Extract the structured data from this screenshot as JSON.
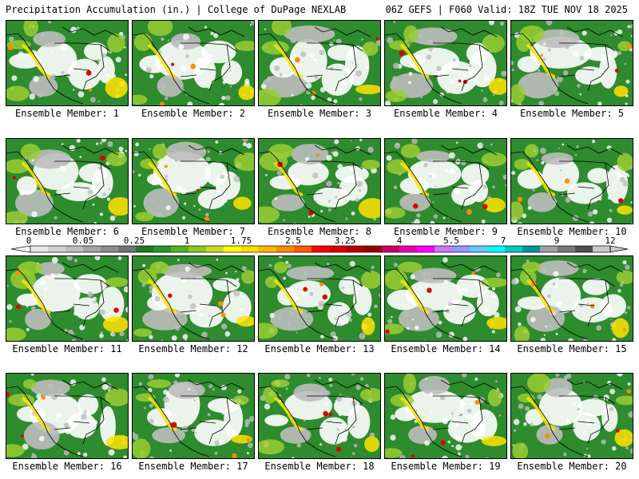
{
  "header": {
    "left": "Precipitation Accumulation (in.) | College of DuPage NEXLAB",
    "right": "06Z GEFS | F060 Valid: 18Z TUE NOV 18 2025"
  },
  "members": [
    {
      "label": "Ensemble Member: 1"
    },
    {
      "label": "Ensemble Member: 2"
    },
    {
      "label": "Ensemble Member: 3"
    },
    {
      "label": "Ensemble Member: 4"
    },
    {
      "label": "Ensemble Member: 5"
    },
    {
      "label": "Ensemble Member: 6"
    },
    {
      "label": "Ensemble Member: 7"
    },
    {
      "label": "Ensemble Member: 8"
    },
    {
      "label": "Ensemble Member: 9"
    },
    {
      "label": "Ensemble Member: 10"
    },
    {
      "label": "Ensemble Member: 11"
    },
    {
      "label": "Ensemble Member: 12"
    },
    {
      "label": "Ensemble Member: 13"
    },
    {
      "label": "Ensemble Member: 14"
    },
    {
      "label": "Ensemble Member: 15"
    },
    {
      "label": "Ensemble Member: 16"
    },
    {
      "label": "Ensemble Member: 17"
    },
    {
      "label": "Ensemble Member: 18"
    },
    {
      "label": "Ensemble Member: 19"
    },
    {
      "label": "Ensemble Member: 20"
    }
  ],
  "colorbar": {
    "tick_labels": [
      "0",
      "0.05",
      "0.25",
      "1",
      "1.75",
      "2.5",
      "3.25",
      "4",
      "5.5",
      "7",
      "9",
      "12"
    ],
    "colors": [
      "#e6e6e6",
      "#d2d2d2",
      "#bebebe",
      "#a5a5a5",
      "#8c8c8c",
      "#737373",
      "#1e7d1e",
      "#289628",
      "#50b41e",
      "#8cc81e",
      "#c8dc1e",
      "#ffff00",
      "#ffdc00",
      "#ffb400",
      "#ff8c00",
      "#ff5a00",
      "#ff0000",
      "#dc0000",
      "#b40000",
      "#960000",
      "#c80064",
      "#e600b4",
      "#ff00ff",
      "#c878ff",
      "#9696ff",
      "#64c8ff",
      "#00ffff",
      "#00c8c8",
      "#009696",
      "#a0a0a0",
      "#787878",
      "#505050",
      "#c8c8c8"
    ]
  },
  "map_colors": {
    "dry": "#ffffff",
    "trace": "#bdbdbd",
    "light": "#2e8b2e",
    "moderate": "#9acd32",
    "heavy": "#ffe300",
    "very_heavy": "#ff8c00",
    "extreme": "#e00000",
    "border": "#000000"
  }
}
